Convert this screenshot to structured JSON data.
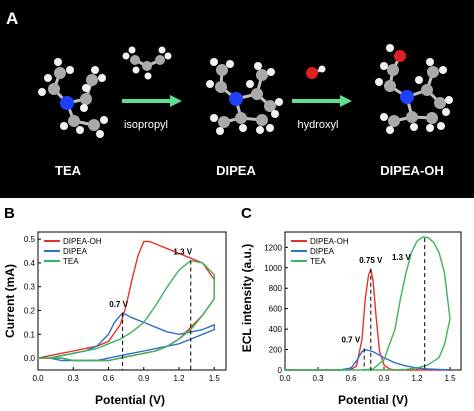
{
  "panel_a": {
    "panel_label": "A",
    "molecules": [
      {
        "name": "TEA"
      },
      {
        "name": "DIPEA"
      },
      {
        "name": "DIPEA-OH"
      }
    ],
    "arrows": [
      {
        "label": "isopropyl"
      },
      {
        "label": "hydroxyl"
      }
    ],
    "colors": {
      "carbon": "#a9a9a9",
      "nitrogen": "#1f3fff",
      "hydrogen": "#f2f2f2",
      "oxygen": "#e02020",
      "arrow": "#5fe08f"
    }
  },
  "chart_data": [
    {
      "type": "line",
      "panel_label": "B",
      "xlabel": "Potential (V)",
      "ylabel": "Current (mA)",
      "xlim": [
        0.0,
        1.6
      ],
      "ylim": [
        -0.05,
        0.53
      ],
      "xticks": [
        "0.0",
        "0.3",
        "0.6",
        "0.9",
        "1.2",
        "1.5"
      ],
      "yticks": [
        "0.0",
        "0.1",
        "0.2",
        "0.3",
        "0.4",
        "0.5"
      ],
      "legend": "top-left",
      "grid": false,
      "annotations": [
        {
          "text": "0.7 V",
          "x": 0.72,
          "y": 0.19
        },
        {
          "text": "1.3 V",
          "x": 1.3,
          "y": 0.41
        }
      ],
      "series": [
        {
          "name": "DIPEA-OH",
          "color": "#e8312a",
          "x": [
            0.0,
            0.1,
            0.2,
            0.3,
            0.4,
            0.5,
            0.6,
            0.7,
            0.75,
            0.8,
            0.85,
            0.9,
            0.95,
            1.0,
            1.1,
            1.2,
            1.3,
            1.4,
            1.5,
            1.5,
            1.4,
            1.3,
            1.2,
            1.1,
            1.0,
            0.9,
            0.8,
            0.7,
            0.6,
            0.5,
            0.4,
            0.3,
            0.2,
            0.1,
            0.0
          ],
          "y": [
            0.0,
            0.01,
            0.02,
            0.03,
            0.04,
            0.05,
            0.07,
            0.14,
            0.22,
            0.33,
            0.43,
            0.49,
            0.49,
            0.48,
            0.46,
            0.44,
            0.42,
            0.4,
            0.33,
            0.25,
            0.18,
            0.13,
            0.08,
            0.05,
            0.03,
            0.02,
            0.01,
            0.0,
            -0.01,
            -0.01,
            -0.01,
            -0.01,
            0.0,
            0.0,
            0.0
          ]
        },
        {
          "name": "DIPEA",
          "color": "#2f6fcc",
          "x": [
            0.0,
            0.1,
            0.2,
            0.3,
            0.4,
            0.5,
            0.6,
            0.65,
            0.72,
            0.8,
            0.9,
            1.0,
            1.1,
            1.2,
            1.3,
            1.4,
            1.5,
            1.5,
            1.4,
            1.3,
            1.2,
            1.1,
            1.0,
            0.9,
            0.8,
            0.7,
            0.6,
            0.5,
            0.4,
            0.3,
            0.2,
            0.1,
            0.0
          ],
          "y": [
            0.0,
            0.0,
            0.01,
            0.02,
            0.03,
            0.05,
            0.1,
            0.15,
            0.19,
            0.17,
            0.15,
            0.13,
            0.11,
            0.1,
            0.11,
            0.12,
            0.14,
            0.12,
            0.1,
            0.08,
            0.06,
            0.05,
            0.04,
            0.03,
            0.02,
            0.01,
            0.0,
            -0.01,
            -0.01,
            -0.01,
            -0.01,
            0.0,
            0.0
          ]
        },
        {
          "name": "TEA",
          "color": "#3db35a",
          "x": [
            0.0,
            0.1,
            0.2,
            0.3,
            0.4,
            0.5,
            0.6,
            0.7,
            0.8,
            0.9,
            1.0,
            1.1,
            1.2,
            1.3,
            1.4,
            1.5,
            1.5,
            1.4,
            1.3,
            1.2,
            1.1,
            1.0,
            0.9,
            0.8,
            0.7,
            0.6,
            0.5,
            0.4,
            0.3,
            0.2,
            0.1,
            0.0
          ],
          "y": [
            0.0,
            0.0,
            0.01,
            0.02,
            0.03,
            0.04,
            0.06,
            0.08,
            0.11,
            0.15,
            0.22,
            0.3,
            0.37,
            0.41,
            0.4,
            0.35,
            0.25,
            0.18,
            0.12,
            0.08,
            0.05,
            0.03,
            0.02,
            0.01,
            0.0,
            -0.01,
            -0.01,
            -0.01,
            -0.01,
            0.0,
            0.0,
            0.0
          ]
        }
      ]
    },
    {
      "type": "line",
      "panel_label": "C",
      "xlabel": "Potential (V)",
      "ylabel": "ECL intensity (a.u.)",
      "xlim": [
        0.0,
        1.6
      ],
      "ylim": [
        0,
        1350
      ],
      "xticks": [
        "0.0",
        "0.3",
        "0.6",
        "0.9",
        "1.2",
        "1.5"
      ],
      "yticks": [
        "0",
        "200",
        "400",
        "600",
        "800",
        "1000",
        "1200"
      ],
      "legend": "top-left",
      "grid": false,
      "annotations": [
        {
          "text": "0.75 V",
          "x": 0.78,
          "y": 990
        },
        {
          "text": "0.7 V",
          "x": 0.72,
          "y": 210
        },
        {
          "text": "1.3 V",
          "x": 1.27,
          "y": 1290
        }
      ],
      "series": [
        {
          "name": "DIPEA-OH",
          "color": "#e8312a",
          "x": [
            0.0,
            0.5,
            0.6,
            0.65,
            0.7,
            0.73,
            0.76,
            0.78,
            0.8,
            0.83,
            0.86,
            0.9,
            0.95,
            1.0,
            1.5
          ],
          "y": [
            0,
            0,
            5,
            40,
            300,
            700,
            930,
            980,
            880,
            500,
            180,
            50,
            10,
            0,
            0
          ]
        },
        {
          "name": "DIPEA",
          "color": "#2f6fcc",
          "x": [
            0.0,
            0.5,
            0.6,
            0.65,
            0.7,
            0.73,
            0.8,
            0.9,
            1.0,
            1.1,
            1.2,
            1.3,
            1.5
          ],
          "y": [
            0,
            0,
            20,
            90,
            180,
            200,
            180,
            120,
            70,
            40,
            20,
            10,
            0
          ]
        },
        {
          "name": "TEA",
          "color": "#3db35a",
          "x": [
            0.0,
            0.7,
            0.8,
            0.9,
            1.0,
            1.05,
            1.1,
            1.15,
            1.2,
            1.25,
            1.3,
            1.35,
            1.4,
            1.45,
            1.5,
            1.45,
            1.4,
            1.3,
            1.2,
            1.1,
            1.0,
            0.9,
            0.0
          ],
          "y": [
            0,
            0,
            10,
            100,
            400,
            700,
            950,
            1150,
            1260,
            1300,
            1295,
            1250,
            1150,
            950,
            500,
            250,
            120,
            50,
            20,
            5,
            0,
            0,
            0
          ]
        }
      ]
    }
  ]
}
